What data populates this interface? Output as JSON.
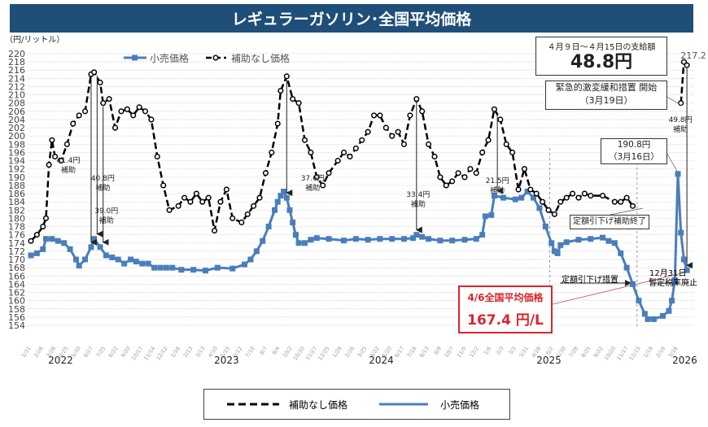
{
  "title": "レギュラーガソリン･全国平均価格",
  "chart_data": {
    "type": "line",
    "title": "レギュラーガソリン･全国平均価格",
    "ylabel": "（円/リットル）",
    "ylim": [
      154,
      220
    ],
    "ytick_step": 2,
    "grid": true,
    "legend_top": [
      "小売価格",
      "補助なし価格"
    ],
    "legend_bottom": [
      "補助なし価格",
      "小売価格"
    ],
    "legend_placement": "top and bottom",
    "colors": {
      "retail": "#4a7ebb",
      "unsubsidized": "#000000",
      "title_bar": "#1f4e79",
      "highlight": "#d9262b"
    },
    "x_tick_labels": [
      "1/31",
      "2/28",
      "3/28",
      "4/25",
      "5/30",
      "6/27",
      "7/25",
      "8/22",
      "9/20",
      "10/17",
      "11/14",
      "12/12",
      "1/16",
      "2/13",
      "3/13",
      "4/10",
      "5/15",
      "6/12",
      "7/10",
      "8/7",
      "9/4",
      "10/2",
      "10/30",
      "11/27",
      "12/25",
      "1/29",
      "2/26",
      "3/25",
      "4/22",
      "5/20",
      "6/17",
      "7/16",
      "8/13",
      "9/9",
      "10/7",
      "11/5",
      "12/2",
      "1/6",
      "2/3",
      "3/3",
      "3/31",
      "4/28",
      "6/2",
      "6/30",
      "7/28",
      "8/25",
      "9/22",
      "10/20",
      "11/17",
      "12/15",
      "1/19",
      "2/16",
      "3/16"
    ],
    "year_labels": [
      {
        "label": "2022",
        "date": "2022-04-10"
      },
      {
        "label": "2023",
        "date": "2023-05-01"
      },
      {
        "label": "2024",
        "date": "2024-04-25"
      },
      {
        "label": "2025",
        "date": "2025-05-20"
      },
      {
        "label": "2026",
        "date": "2026-04-01"
      }
    ],
    "series": [
      {
        "name": "小売価格",
        "key": "retail",
        "points": [
          [
            "2022-01-31",
            171
          ],
          [
            "2022-02-14",
            171.5
          ],
          [
            "2022-02-28",
            172.5
          ],
          [
            "2022-03-07",
            175
          ],
          [
            "2022-03-21",
            175
          ],
          [
            "2022-04-04",
            174.5
          ],
          [
            "2022-04-18",
            174
          ],
          [
            "2022-05-02",
            172.5
          ],
          [
            "2022-05-16",
            170
          ],
          [
            "2022-05-23",
            168.5
          ],
          [
            "2022-06-06",
            170
          ],
          [
            "2022-06-20",
            173
          ],
          [
            "2022-06-27",
            175
          ],
          [
            "2022-07-11",
            173
          ],
          [
            "2022-07-25",
            171
          ],
          [
            "2022-08-08",
            170.5
          ],
          [
            "2022-08-22",
            170
          ],
          [
            "2022-09-05",
            169
          ],
          [
            "2022-09-20",
            170
          ],
          [
            "2022-10-03",
            169.5
          ],
          [
            "2022-10-17",
            169
          ],
          [
            "2022-10-31",
            169
          ],
          [
            "2022-11-14",
            168
          ],
          [
            "2022-11-28",
            168
          ],
          [
            "2022-12-12",
            168
          ],
          [
            "2022-12-26",
            168
          ],
          [
            "2023-01-16",
            167.5
          ],
          [
            "2023-02-13",
            167.5
          ],
          [
            "2023-03-13",
            167.3
          ],
          [
            "2023-04-10",
            168
          ],
          [
            "2023-05-15",
            167.8
          ],
          [
            "2023-06-12",
            168.8
          ],
          [
            "2023-06-26",
            170
          ],
          [
            "2023-07-10",
            172
          ],
          [
            "2023-07-24",
            174.5
          ],
          [
            "2023-08-07",
            178
          ],
          [
            "2023-08-21",
            182
          ],
          [
            "2023-08-28",
            184
          ],
          [
            "2023-09-04",
            185.5
          ],
          [
            "2023-09-11",
            186.5
          ],
          [
            "2023-09-18",
            185
          ],
          [
            "2023-09-25",
            182
          ],
          [
            "2023-10-02",
            179
          ],
          [
            "2023-10-09",
            176
          ],
          [
            "2023-10-16",
            174
          ],
          [
            "2023-10-30",
            174
          ],
          [
            "2023-11-13",
            174.8
          ],
          [
            "2023-11-27",
            175.2
          ],
          [
            "2023-12-25",
            175
          ],
          [
            "2024-01-29",
            174.6
          ],
          [
            "2024-02-26",
            175
          ],
          [
            "2024-03-25",
            174.8
          ],
          [
            "2024-04-22",
            175
          ],
          [
            "2024-05-20",
            175
          ],
          [
            "2024-06-17",
            175
          ],
          [
            "2024-07-08",
            175.2
          ],
          [
            "2024-07-16",
            176
          ],
          [
            "2024-07-29",
            175.5
          ],
          [
            "2024-08-13",
            175
          ],
          [
            "2024-09-09",
            174.6
          ],
          [
            "2024-10-07",
            174.6
          ],
          [
            "2024-11-05",
            174.8
          ],
          [
            "2024-12-02",
            175
          ],
          [
            "2024-12-16",
            176
          ],
          [
            "2024-12-23",
            180.5
          ],
          [
            "2025-01-06",
            180.8
          ],
          [
            "2025-01-13",
            185.5
          ],
          [
            "2025-02-03",
            185
          ],
          [
            "2025-03-03",
            184.6
          ],
          [
            "2025-03-17",
            185
          ],
          [
            "2025-03-31",
            186.5
          ],
          [
            "2025-04-14",
            185
          ],
          [
            "2025-04-28",
            182.5
          ],
          [
            "2025-05-12",
            178
          ],
          [
            "2025-05-26",
            174
          ],
          [
            "2025-06-02",
            172
          ],
          [
            "2025-06-09",
            171.5
          ],
          [
            "2025-06-16",
            173.5
          ],
          [
            "2025-06-30",
            174.2
          ],
          [
            "2025-07-28",
            174.8
          ],
          [
            "2025-08-25",
            175
          ],
          [
            "2025-09-22",
            175.3
          ],
          [
            "2025-10-06",
            174.5
          ],
          [
            "2025-10-20",
            174
          ],
          [
            "2025-11-03",
            171.5
          ],
          [
            "2025-11-17",
            168
          ],
          [
            "2025-12-01",
            164
          ],
          [
            "2025-12-15",
            160
          ],
          [
            "2025-12-29",
            156.8
          ],
          [
            "2026-01-05",
            155.5
          ],
          [
            "2026-01-19",
            155.5
          ],
          [
            "2026-02-09",
            156.3
          ],
          [
            "2026-02-23",
            157.5
          ],
          [
            "2026-03-02",
            160
          ],
          [
            "2026-03-09",
            165
          ],
          [
            "2026-03-16",
            190.8
          ],
          [
            "2026-03-23",
            176.5
          ],
          [
            "2026-03-30",
            170
          ],
          [
            "2026-04-06",
            167.4
          ]
        ]
      },
      {
        "name": "補助なし価格",
        "key": "unsubsidized",
        "points": [
          [
            "2022-01-31",
            174.5
          ],
          [
            "2022-02-14",
            176
          ],
          [
            "2022-02-28",
            178
          ],
          [
            "2022-03-07",
            180
          ],
          [
            "2022-03-14",
            193
          ],
          [
            "2022-03-21",
            199
          ],
          [
            "2022-03-28",
            195
          ],
          [
            "2022-04-11",
            194
          ],
          [
            "2022-04-25",
            198
          ],
          [
            "2022-05-09",
            203
          ],
          [
            "2022-05-23",
            205
          ],
          [
            "2022-06-06",
            206
          ],
          [
            "2022-06-20",
            215
          ],
          [
            "2022-06-27",
            215.5
          ],
          [
            "2022-07-11",
            213
          ],
          [
            "2022-07-18",
            208
          ],
          [
            "2022-08-01",
            209
          ],
          [
            "2022-08-15",
            202
          ],
          [
            "2022-08-29",
            206
          ],
          [
            "2022-09-12",
            206.5
          ],
          [
            "2022-09-26",
            205
          ],
          [
            "2022-10-10",
            207
          ],
          [
            "2022-10-24",
            206
          ],
          [
            "2022-11-07",
            204
          ],
          [
            "2022-11-21",
            195
          ],
          [
            "2022-12-05",
            188
          ],
          [
            "2022-12-19",
            182
          ],
          [
            "2023-01-09",
            183
          ],
          [
            "2023-01-23",
            185
          ],
          [
            "2023-02-06",
            184
          ],
          [
            "2023-02-20",
            186
          ],
          [
            "2023-03-06",
            184
          ],
          [
            "2023-03-20",
            185
          ],
          [
            "2023-04-03",
            177
          ],
          [
            "2023-04-17",
            184
          ],
          [
            "2023-05-01",
            187
          ],
          [
            "2023-05-15",
            180
          ],
          [
            "2023-06-05",
            179
          ],
          [
            "2023-06-19",
            181
          ],
          [
            "2023-07-03",
            183
          ],
          [
            "2023-07-17",
            185
          ],
          [
            "2023-07-31",
            191
          ],
          [
            "2023-08-14",
            196
          ],
          [
            "2023-08-28",
            203
          ],
          [
            "2023-09-04",
            211
          ],
          [
            "2023-09-18",
            214.5
          ],
          [
            "2023-10-02",
            209
          ],
          [
            "2023-10-16",
            208
          ],
          [
            "2023-10-30",
            199
          ],
          [
            "2023-11-13",
            196
          ],
          [
            "2023-11-27",
            190
          ],
          [
            "2023-12-11",
            188
          ],
          [
            "2023-12-25",
            191
          ],
          [
            "2024-01-15",
            194
          ],
          [
            "2024-01-29",
            196
          ],
          [
            "2024-02-12",
            195
          ],
          [
            "2024-02-26",
            197
          ],
          [
            "2024-03-11",
            199
          ],
          [
            "2024-03-25",
            201
          ],
          [
            "2024-04-08",
            205
          ],
          [
            "2024-04-22",
            205
          ],
          [
            "2024-05-06",
            202
          ],
          [
            "2024-05-20",
            200
          ],
          [
            "2024-06-03",
            201
          ],
          [
            "2024-06-17",
            198
          ],
          [
            "2024-07-01",
            205
          ],
          [
            "2024-07-16",
            209
          ],
          [
            "2024-07-29",
            206
          ],
          [
            "2024-08-13",
            198
          ],
          [
            "2024-08-27",
            195
          ],
          [
            "2024-09-09",
            190
          ],
          [
            "2024-09-23",
            188
          ],
          [
            "2024-10-07",
            189
          ],
          [
            "2024-10-21",
            191
          ],
          [
            "2024-11-05",
            190
          ],
          [
            "2024-11-18",
            192
          ],
          [
            "2024-12-02",
            191
          ],
          [
            "2024-12-16",
            196
          ],
          [
            "2024-12-30",
            199
          ],
          [
            "2025-01-13",
            206.5
          ],
          [
            "2025-01-27",
            204
          ],
          [
            "2025-02-10",
            198
          ],
          [
            "2025-02-24",
            196
          ],
          [
            "2025-03-10",
            187
          ],
          [
            "2025-03-24",
            192
          ],
          [
            "2025-04-07",
            187
          ],
          [
            "2025-04-21",
            186
          ],
          [
            "2025-05-05",
            184
          ],
          [
            "2025-05-19",
            182
          ],
          [
            "2025-06-02",
            181
          ],
          [
            "2025-06-16",
            184
          ],
          [
            "2025-06-30",
            185
          ],
          [
            "2025-07-14",
            186
          ],
          [
            "2025-07-28",
            185
          ],
          [
            "2025-08-11",
            186
          ],
          [
            "2025-08-25",
            185.5
          ],
          [
            "2025-09-22",
            185.5
          ],
          [
            "2025-10-20",
            184
          ],
          [
            "2025-11-03",
            184
          ],
          [
            "2025-11-17",
            185
          ],
          [
            "2025-12-01",
            183
          ],
          [
            "2026-03-23",
            208
          ],
          [
            "2026-03-30",
            218
          ],
          [
            "2026-04-06",
            217.2
          ]
        ]
      }
    ],
    "subsidy_annotations": [
      {
        "date": "2022-06-20",
        "label": "41.4円",
        "sub": "補助"
      },
      {
        "date": "2022-07-04",
        "label": "40.8円",
        "sub": "補助"
      },
      {
        "date": "2022-07-18",
        "label": "39.0円",
        "sub": "補助"
      },
      {
        "date": "2023-09-18",
        "label": "37.6円",
        "sub": "補助"
      },
      {
        "date": "2024-07-16",
        "label": "33.4円",
        "sub": "補助"
      },
      {
        "date": "2025-01-20",
        "label": "21.5円",
        "sub": "補助"
      },
      {
        "date": "2026-04-06",
        "label": "49.8円",
        "sub": "補助"
      }
    ],
    "peak_label": "217.2",
    "phase_lines": [
      "2025-05-22",
      "2025-12-11"
    ]
  },
  "callouts": {
    "payment_period": "４月９日～４月15日の支給額",
    "payment_amount": "48.8円",
    "emergency_title": "緊急的激変緩和措置 開始",
    "emergency_date": "（3月19日）",
    "spike_value": "190.8円",
    "spike_date": "（3月16日）",
    "fixed_end": "定額引下げ補助終了",
    "fixed_measure": "定額引下げ措置",
    "tax_date": "12月31日",
    "tax_abolish": "暫定税率廃止",
    "national_avg_title": "4/6全国平均価格",
    "national_avg_value": "167.4 円/L"
  }
}
